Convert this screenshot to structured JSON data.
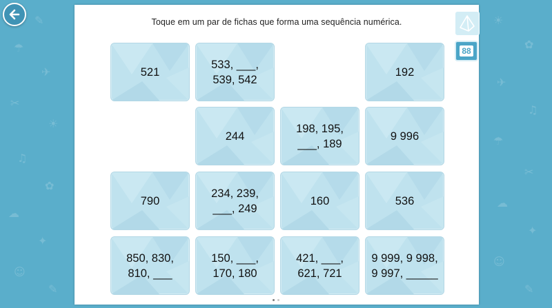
{
  "instruction": "Toque em um par de fichas que forma uma sequência numérica.",
  "page_number": "88",
  "icons": {
    "back": "back-arrow-icon",
    "geometry": "pyramid-icon"
  },
  "colors": {
    "background": "#5aaecb",
    "card": "#bfe2ee",
    "accent": "#4ba5c7"
  },
  "cards": [
    {
      "text": "521"
    },
    {
      "text": "533, ___,\n539, 542"
    },
    {
      "text": "192"
    },
    {
      "text": "244"
    },
    {
      "text": "198, 195,\n___, 189"
    },
    {
      "text": "9 996"
    },
    {
      "text": "790"
    },
    {
      "text": "234, 239,\n___, 249"
    },
    {
      "text": "160"
    },
    {
      "text": "536"
    },
    {
      "text": "850, 830,\n810, ___"
    },
    {
      "text": "150, ___,\n170, 180"
    },
    {
      "text": "421, ___,\n621, 721"
    },
    {
      "text": "9 999, 9 998,\n9 997, _____"
    }
  ],
  "pagination": {
    "total": 2,
    "current": 1
  }
}
